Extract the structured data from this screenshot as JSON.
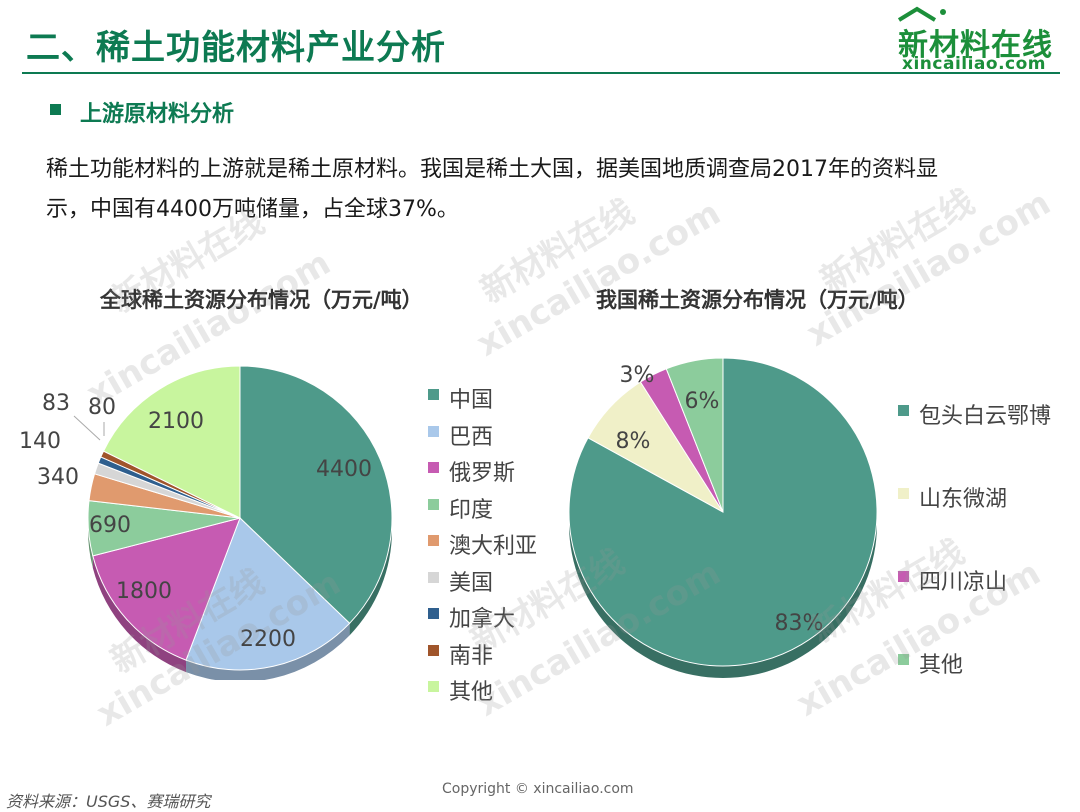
{
  "header": {
    "title": "二、稀土功能材料产业分析",
    "logo_main": "新材料在线",
    "logo_sub": "xincailiao.com"
  },
  "section": {
    "heading": "上游原材料分析",
    "body_line1": "稀土功能材料的上游就是稀土原材料。我国是稀土大国，据美国地质调查局2017年的资料显",
    "body_line2": "示，中国有4400万吨储量，占全球37%。"
  },
  "watermark": {
    "cn": "新材料在线",
    "en": "xincailiao.com"
  },
  "chart_data": [
    {
      "type": "pie",
      "title": "全球稀土资源分布情况（万元/吨）",
      "categories": [
        "中国",
        "巴西",
        "俄罗斯",
        "印度",
        "澳大利亚",
        "美国",
        "加拿大",
        "南非",
        "其他"
      ],
      "values": [
        4400,
        2200,
        1800,
        690,
        340,
        140,
        83,
        80,
        2100
      ],
      "data_labels": [
        "4400",
        "2200",
        "1800",
        "690",
        "340",
        "140",
        "83",
        "80",
        "2100"
      ],
      "colors": [
        "#4e9a8a",
        "#a9c8ea",
        "#c65bb2",
        "#8ccc9c",
        "#e09a6e",
        "#d6d6d6",
        "#2f5f8e",
        "#a0552b",
        "#c8f59e"
      ],
      "legend_position": "right"
    },
    {
      "type": "pie",
      "title": "我国稀土资源分布情况（万元/吨）",
      "categories": [
        "包头白云鄂博",
        "山东微湖",
        "四川凉山",
        "其他"
      ],
      "values": [
        83,
        8,
        3,
        6
      ],
      "data_labels": [
        "83%",
        "8%",
        "3%",
        "6%"
      ],
      "colors": [
        "#4e9a8a",
        "#f0f0c8",
        "#c65bb2",
        "#8ccc9c"
      ],
      "legend_position": "right"
    }
  ],
  "footer": {
    "source": "资料来源：USGS、赛瑞研究",
    "copyright": "Copyright © xincailiao.com"
  }
}
